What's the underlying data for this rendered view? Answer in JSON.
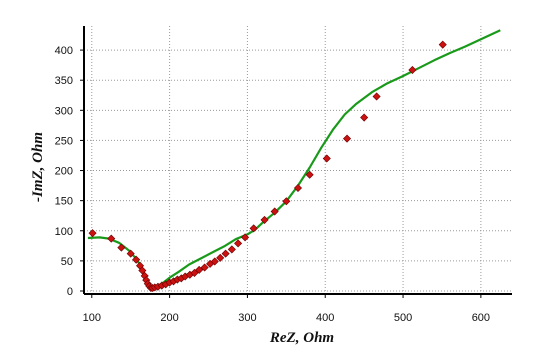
{
  "chart_data": {
    "type": "scatter",
    "title": "",
    "xlabel": "ReZ, Ohm",
    "ylabel": "-ImZ, Ohm",
    "xlim": [
      90,
      640
    ],
    "ylim": [
      -5,
      440
    ],
    "x_ticks": [
      100,
      200,
      300,
      400,
      500,
      600
    ],
    "y_ticks": [
      0,
      50,
      100,
      150,
      200,
      250,
      300,
      350,
      400
    ],
    "grid": true,
    "legend": "none",
    "colors": {
      "measured": "#cc1111",
      "fit": "#1a9a1a"
    },
    "series": [
      {
        "kind": "markers",
        "points": [
          [
            101,
            96
          ],
          [
            125,
            87
          ],
          [
            138,
            72
          ],
          [
            150,
            62
          ],
          [
            157,
            52
          ],
          [
            162,
            42
          ],
          [
            165,
            34
          ],
          [
            168,
            25
          ],
          [
            170,
            18
          ],
          [
            172,
            12
          ],
          [
            174,
            8
          ],
          [
            176,
            5
          ],
          [
            178,
            5
          ],
          [
            181,
            6
          ],
          [
            185,
            7
          ],
          [
            190,
            9
          ],
          [
            195,
            11
          ],
          [
            200,
            14
          ],
          [
            205,
            16
          ],
          [
            210,
            19
          ],
          [
            215,
            21
          ],
          [
            220,
            24
          ],
          [
            226,
            27
          ],
          [
            232,
            30
          ],
          [
            238,
            35
          ],
          [
            245,
            39
          ],
          [
            252,
            45
          ],
          [
            258,
            49
          ],
          [
            265,
            55
          ],
          [
            272,
            62
          ],
          [
            280,
            69
          ],
          [
            288,
            79
          ],
          [
            297,
            89
          ],
          [
            308,
            104
          ],
          [
            322,
            118
          ],
          [
            335,
            132
          ],
          [
            350,
            149
          ],
          [
            365,
            171
          ],
          [
            380,
            193
          ],
          [
            402,
            220
          ],
          [
            428,
            253
          ],
          [
            450,
            288
          ],
          [
            466,
            323
          ],
          [
            512,
            367
          ],
          [
            551,
            409
          ]
        ]
      },
      {
        "kind": "line",
        "points": [
          [
            95,
            88
          ],
          [
            110,
            89
          ],
          [
            122,
            87
          ],
          [
            135,
            80
          ],
          [
            148,
            67
          ],
          [
            158,
            52
          ],
          [
            165,
            36
          ],
          [
            170,
            20
          ],
          [
            174,
            10
          ],
          [
            178,
            5
          ],
          [
            182,
            8
          ],
          [
            190,
            12
          ],
          [
            200,
            22
          ],
          [
            212,
            32
          ],
          [
            225,
            44
          ],
          [
            240,
            54
          ],
          [
            255,
            64
          ],
          [
            270,
            74
          ],
          [
            285,
            86
          ],
          [
            300,
            94
          ],
          [
            310,
            102
          ],
          [
            320,
            114
          ],
          [
            335,
            130
          ],
          [
            350,
            149
          ],
          [
            365,
            175
          ],
          [
            380,
            205
          ],
          [
            395,
            238
          ],
          [
            410,
            268
          ],
          [
            425,
            293
          ],
          [
            440,
            311
          ],
          [
            460,
            330
          ],
          [
            480,
            345
          ],
          [
            500,
            357
          ],
          [
            520,
            370
          ],
          [
            540,
            383
          ],
          [
            560,
            395
          ],
          [
            580,
            406
          ],
          [
            600,
            418
          ],
          [
            625,
            433
          ]
        ]
      },
      {
        "kind": "line",
        "points": [
          [
            178,
            5
          ],
          [
            184,
            8
          ],
          [
            190,
            10
          ],
          [
            196,
            14
          ],
          [
            202,
            17
          ],
          [
            208,
            20
          ],
          [
            214,
            23
          ],
          [
            222,
            27
          ],
          [
            230,
            31
          ]
        ]
      }
    ]
  }
}
